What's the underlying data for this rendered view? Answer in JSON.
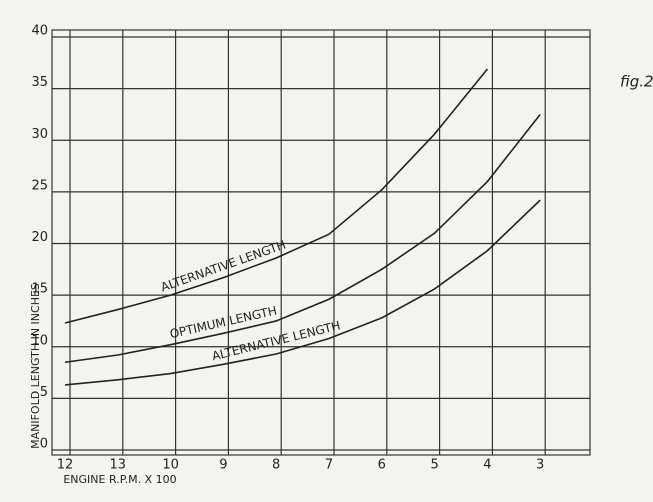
{
  "chart_data": {
    "type": "line",
    "corner_label": "fig.2",
    "y_label": "MANIFOLD LENGTH IN INCHES",
    "x_label": "ENGINE R.P.M. X 100",
    "categories": [
      "12",
      "13",
      "10",
      "9",
      "8",
      "7",
      "6",
      "5",
      "4",
      "3"
    ],
    "series": [
      {
        "name": "ALTERNATIVE LENGTH",
        "color": "#222222",
        "values": [
          12.3,
          13.6,
          15,
          16.7,
          18.6,
          20.9,
          25.2,
          30.6,
          36.9,
          null
        ]
      },
      {
        "name": "OPTIMUM LENGTH",
        "color": "#222222",
        "values": [
          8.5,
          9.2,
          10.2,
          11.3,
          12.5,
          14.6,
          17.5,
          21,
          26,
          32.5
        ]
      },
      {
        "name": "ALTERNATIVE LENGTH",
        "color": "#222222",
        "values": [
          6.3,
          6.8,
          7.4,
          8.3,
          9.3,
          10.8,
          12.8,
          15.6,
          19.3,
          24.2
        ]
      }
    ],
    "ylim": [
      0,
      40
    ],
    "yticks": [
      0,
      5,
      10,
      15,
      20,
      25,
      30,
      35,
      40
    ],
    "grid": true
  }
}
